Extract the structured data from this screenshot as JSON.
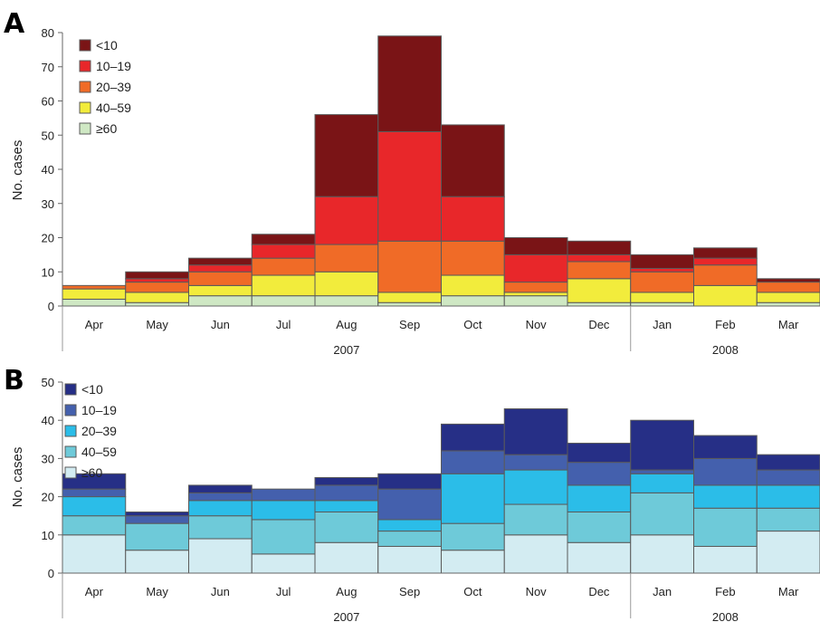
{
  "chart_data": [
    {
      "type": "bar",
      "stacked": true,
      "panel_label": "A",
      "ylabel": "No. cases",
      "ylim": [
        0,
        80
      ],
      "yticks": [
        0,
        10,
        20,
        30,
        40,
        50,
        60,
        70,
        80
      ],
      "categories": [
        "Apr",
        "May",
        "Jun",
        "Jul",
        "Aug",
        "Sep",
        "Oct",
        "Nov",
        "Dec",
        "Jan",
        "Feb",
        "Mar"
      ],
      "years": [
        {
          "label": "2007",
          "from": 0,
          "to": 8
        },
        {
          "label": "2008",
          "from": 9,
          "to": 11
        }
      ],
      "legend_position": "top-left",
      "series": [
        {
          "name": "≥60",
          "color": "#cfe8c4",
          "values": [
            2,
            1,
            3,
            3,
            3,
            1,
            3,
            3,
            1,
            1,
            0,
            1
          ]
        },
        {
          "name": "40–59",
          "color": "#f2ec3c",
          "values": [
            3,
            3,
            3,
            6,
            7,
            3,
            6,
            1,
            7,
            3,
            6,
            3
          ]
        },
        {
          "name": "20–39",
          "color": "#f06b27",
          "values": [
            1,
            3,
            4,
            5,
            8,
            15,
            10,
            3,
            5,
            6,
            6,
            3
          ]
        },
        {
          "name": "10–19",
          "color": "#e8272a",
          "values": [
            0,
            1,
            2,
            4,
            14,
            32,
            13,
            8,
            2,
            1,
            2,
            0
          ]
        },
        {
          "name": "<10",
          "color": "#7a1416",
          "values": [
            0,
            2,
            2,
            3,
            24,
            28,
            21,
            5,
            4,
            4,
            3,
            1
          ]
        }
      ]
    },
    {
      "type": "bar",
      "stacked": true,
      "panel_label": "B",
      "ylabel": "No. cases",
      "ylim": [
        0,
        50
      ],
      "yticks": [
        0,
        10,
        20,
        30,
        40,
        50
      ],
      "categories": [
        "Apr",
        "May",
        "Jun",
        "Jul",
        "Aug",
        "Sep",
        "Oct",
        "Nov",
        "Dec",
        "Jan",
        "Feb",
        "Mar"
      ],
      "years": [
        {
          "label": "2007",
          "from": 0,
          "to": 8
        },
        {
          "label": "2008",
          "from": 9,
          "to": 11
        }
      ],
      "legend_position": "top-left",
      "series": [
        {
          "name": "≥60",
          "color": "#d3ecf2",
          "values": [
            10,
            6,
            9,
            5,
            8,
            7,
            6,
            10,
            8,
            10,
            7,
            11
          ]
        },
        {
          "name": "40–59",
          "color": "#6ecad9",
          "values": [
            5,
            7,
            6,
            9,
            8,
            4,
            7,
            8,
            8,
            11,
            10,
            6
          ]
        },
        {
          "name": "20–39",
          "color": "#2bbde8",
          "values": [
            5,
            0,
            4,
            5,
            3,
            3,
            13,
            9,
            7,
            5,
            6,
            6
          ]
        },
        {
          "name": "10–19",
          "color": "#4460ad",
          "values": [
            2,
            2,
            2,
            3,
            4,
            8,
            6,
            4,
            6,
            1,
            7,
            4
          ]
        },
        {
          "name": "<10",
          "color": "#262f86",
          "values": [
            4,
            1,
            2,
            0,
            2,
            4,
            7,
            12,
            5,
            13,
            6,
            4
          ]
        }
      ]
    }
  ]
}
